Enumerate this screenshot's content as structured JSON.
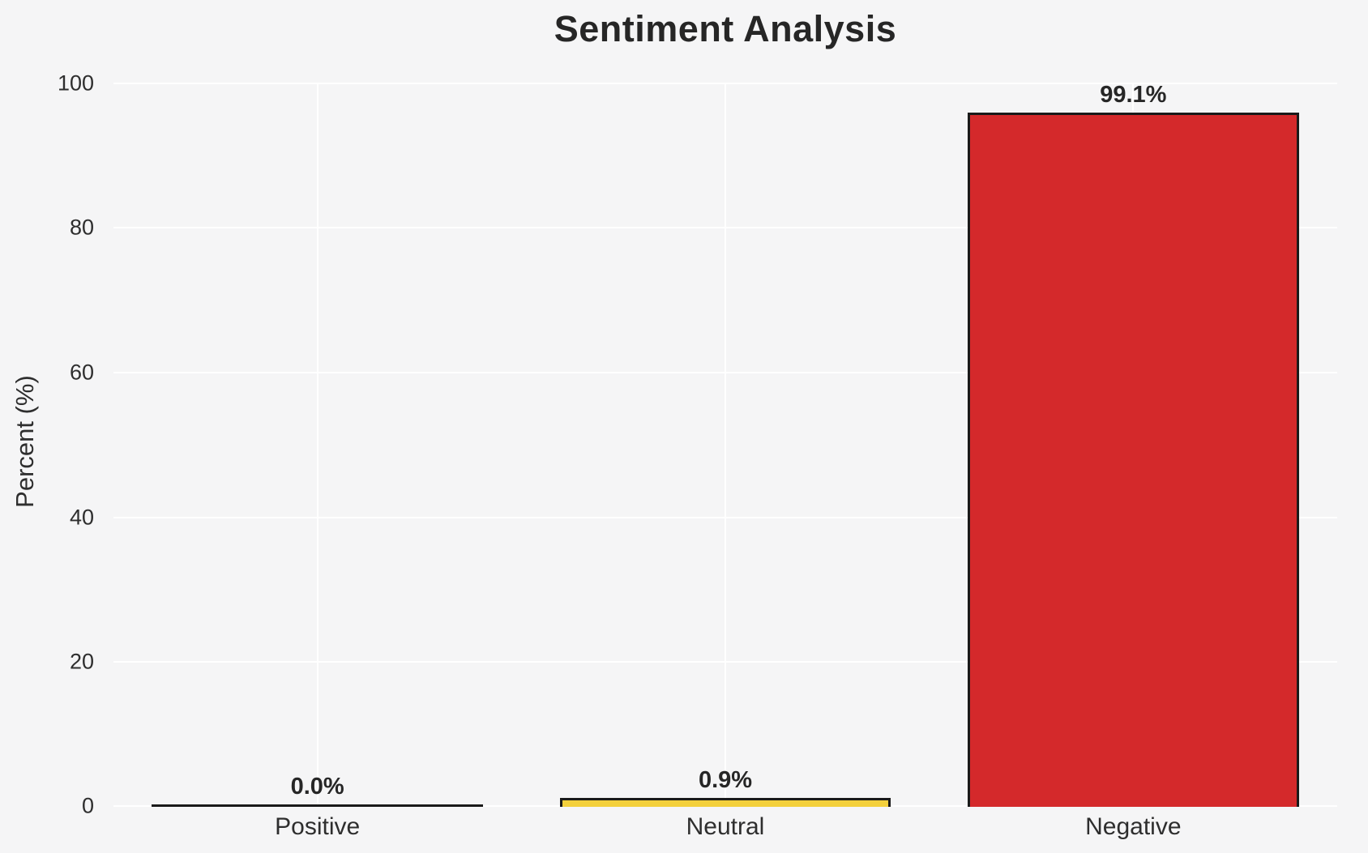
{
  "chart_data": {
    "type": "bar",
    "title": "Sentiment Analysis",
    "categories": [
      "Positive",
      "Neutral",
      "Negative"
    ],
    "values": [
      0.0,
      0.9,
      99.1
    ],
    "value_labels": [
      "0.0%",
      "0.9%",
      "99.1%"
    ],
    "bar_colors": [
      "transparent",
      "#f3d03c",
      "#d4292b"
    ],
    "bar_edge_color": "#1a1a1a",
    "xlabel": "",
    "ylabel": "Percent (%)",
    "ylim": [
      0,
      100
    ],
    "yticks": [
      "0",
      "20",
      "40",
      "60",
      "80",
      "100"
    ],
    "grid": true,
    "grid_color": "#ffffff",
    "background_color": "#f5f5f6",
    "legend": false
  }
}
